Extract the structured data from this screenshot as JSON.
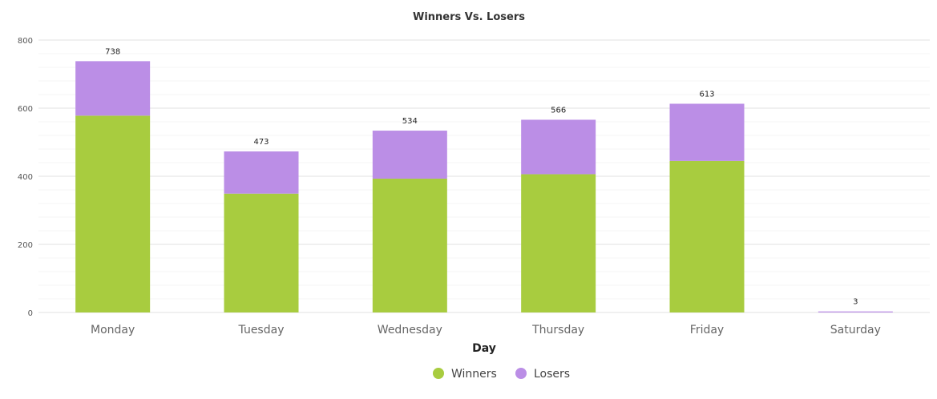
{
  "chart_data": {
    "type": "bar",
    "stacked": true,
    "title": "Winners Vs. Losers",
    "xlabel": "Day",
    "ylabel": "",
    "ylim": [
      0,
      800
    ],
    "yticks": [
      0,
      200,
      400,
      600,
      800
    ],
    "categories": [
      "Monday",
      "Tuesday",
      "Wednesday",
      "Thursday",
      "Friday",
      "Saturday"
    ],
    "series": [
      {
        "name": "Winners",
        "values": [
          578,
          349,
          393,
          406,
          445,
          0
        ],
        "color": "#a8cc3f"
      },
      {
        "name": "Losers",
        "values": [
          160,
          124,
          141,
          160,
          168,
          3
        ],
        "color": "#bb8ee6"
      }
    ],
    "totals": [
      "738",
      "473",
      "534",
      "566",
      "613",
      "3"
    ],
    "legend_position": "bottom-center",
    "grid": true
  }
}
